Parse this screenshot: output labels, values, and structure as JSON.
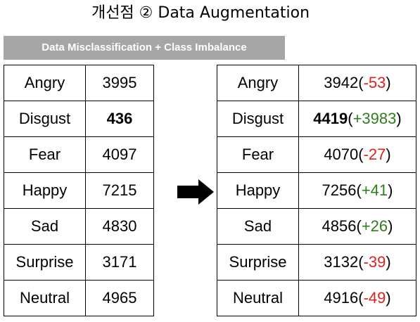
{
  "title": "개선점 ② Data Augmentation",
  "banner": "Data Misclassification + Class Imbalance",
  "colors": {
    "negative": "#e0201b",
    "positive": "#2e7d1f",
    "banner": "#a6a6a6"
  },
  "arrow_icon": "right-arrow-icon",
  "before": {
    "rows": [
      {
        "label": "Angry",
        "count": "3995"
      },
      {
        "label": "Disgust",
        "count": "436"
      },
      {
        "label": "Fear",
        "count": "4097"
      },
      {
        "label": "Happy",
        "count": "7215"
      },
      {
        "label": "Sad",
        "count": "4830"
      },
      {
        "label": "Surprise",
        "count": "3171"
      },
      {
        "label": "Neutral",
        "count": "4965"
      }
    ]
  },
  "after": {
    "rows": [
      {
        "label": "Angry",
        "count": "3942",
        "delta": "-53",
        "sign": "neg"
      },
      {
        "label": "Disgust",
        "count": "4419",
        "delta": "+3983",
        "sign": "pos"
      },
      {
        "label": "Fear",
        "count": "4070",
        "delta": "-27",
        "sign": "neg"
      },
      {
        "label": "Happy",
        "count": "7256",
        "delta": "+41",
        "sign": "pos"
      },
      {
        "label": "Sad",
        "count": "4856",
        "delta": "+26",
        "sign": "pos"
      },
      {
        "label": "Surprise",
        "count": "3132",
        "delta": "-39",
        "sign": "neg"
      },
      {
        "label": "Neutral",
        "count": "4916",
        "delta": "-49",
        "sign": "neg"
      }
    ]
  }
}
